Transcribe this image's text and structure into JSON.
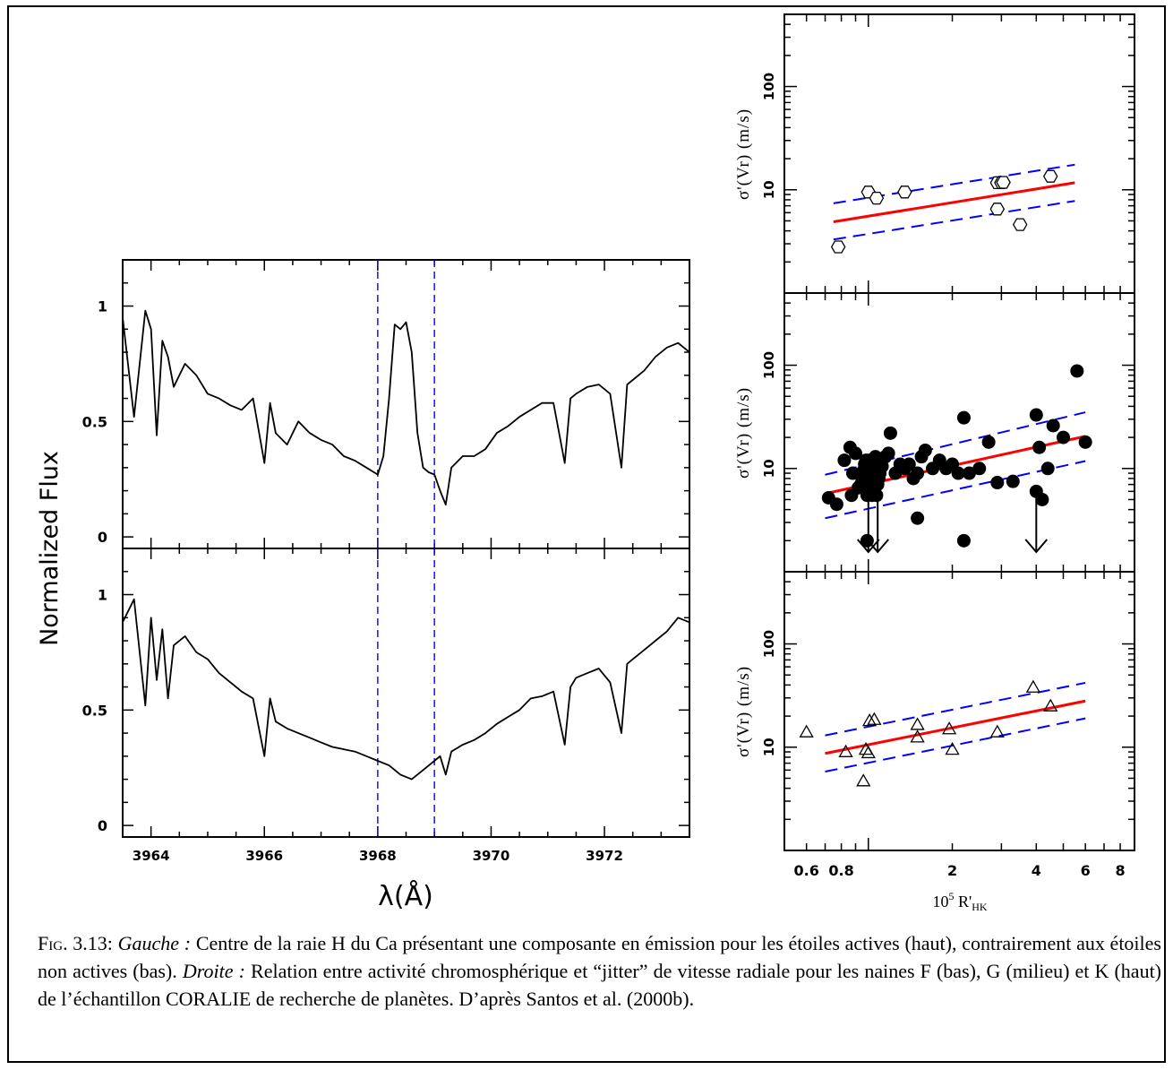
{
  "left_ylabel": "Normalized Flux",
  "left_xlabel": "λ(Å)",
  "right_ylabel": "σ'(Vr) (m/s)",
  "right_xlabel_prefix": "10",
  "right_xlabel_exp": "5",
  "right_xlabel_main": " R'",
  "right_xlabel_sub": "HK",
  "caption": {
    "fig_label": "Fig.",
    "fig_number": " 3.13: ",
    "left_head": "Gauche :",
    "left_text": " Centre de la raie H du Ca présentant une composante en émission pour les étoiles actives (haut), contrairement aux étoiles non actives (bas). ",
    "right_head": "Droite :",
    "right_text": " Relation entre activité chromosphérique et “jitter” de vitesse radiale pour les naines F (bas), G (milieu) et K (haut) de l’échantillon CORALIE de recherche de planètes. D’après Santos et al. (2000b)."
  },
  "colors": {
    "fit": "#ff0000",
    "bounds": "#0000ff",
    "lines": "#000000",
    "markers": "#000000"
  },
  "chart_data": [
    {
      "type": "line",
      "panel": "spectrum-active-top",
      "xlim": [
        3963.5,
        3973.5
      ],
      "ylim": [
        -0.05,
        1.2
      ],
      "xticks": [
        3964,
        3966,
        3968,
        3970,
        3972
      ],
      "yticks": [
        0,
        0.5,
        1
      ],
      "ytick_labels": [
        "0",
        "0.5",
        "1"
      ],
      "vlines": [
        3968.0,
        3969.0
      ],
      "x": [
        3963.5,
        3963.7,
        3963.9,
        3964.0,
        3964.1,
        3964.2,
        3964.3,
        3964.4,
        3964.6,
        3964.8,
        3965.0,
        3965.2,
        3965.4,
        3965.6,
        3965.8,
        3966.0,
        3966.1,
        3966.2,
        3966.4,
        3966.6,
        3966.8,
        3967.0,
        3967.2,
        3967.4,
        3967.6,
        3967.8,
        3968.0,
        3968.1,
        3968.2,
        3968.3,
        3968.4,
        3968.5,
        3968.6,
        3968.7,
        3968.8,
        3968.9,
        3969.0,
        3969.1,
        3969.2,
        3969.3,
        3969.5,
        3969.7,
        3969.9,
        3970.1,
        3970.3,
        3970.5,
        3970.7,
        3970.9,
        3971.1,
        3971.3,
        3971.4,
        3971.5,
        3971.7,
        3971.9,
        3972.1,
        3972.3,
        3972.4,
        3972.5,
        3972.7,
        3972.9,
        3973.1,
        3973.3,
        3973.5
      ],
      "y": [
        0.95,
        0.52,
        0.98,
        0.9,
        0.44,
        0.85,
        0.78,
        0.65,
        0.75,
        0.7,
        0.62,
        0.6,
        0.57,
        0.55,
        0.6,
        0.32,
        0.58,
        0.45,
        0.4,
        0.5,
        0.45,
        0.42,
        0.4,
        0.35,
        0.33,
        0.3,
        0.27,
        0.35,
        0.6,
        0.92,
        0.9,
        0.93,
        0.8,
        0.45,
        0.3,
        0.28,
        0.27,
        0.2,
        0.14,
        0.3,
        0.35,
        0.35,
        0.38,
        0.45,
        0.48,
        0.52,
        0.55,
        0.58,
        0.58,
        0.32,
        0.6,
        0.62,
        0.65,
        0.66,
        0.62,
        0.3,
        0.66,
        0.68,
        0.72,
        0.78,
        0.82,
        0.84,
        0.8
      ]
    },
    {
      "type": "line",
      "panel": "spectrum-inactive-bottom",
      "xlim": [
        3963.5,
        3973.5
      ],
      "ylim": [
        -0.05,
        1.2
      ],
      "xticks": [
        3964,
        3966,
        3968,
        3970,
        3972
      ],
      "xtick_labels": [
        "3964",
        "3966",
        "3968",
        "3970",
        "3972"
      ],
      "yticks": [
        0,
        0.5,
        1
      ],
      "ytick_labels": [
        "0",
        "0.5",
        "1"
      ],
      "vlines": [
        3968.0,
        3969.0
      ],
      "x": [
        3963.5,
        3963.7,
        3963.9,
        3964.0,
        3964.1,
        3964.2,
        3964.3,
        3964.4,
        3964.6,
        3964.8,
        3965.0,
        3965.2,
        3965.4,
        3965.6,
        3965.8,
        3966.0,
        3966.1,
        3966.2,
        3966.4,
        3966.6,
        3966.8,
        3967.0,
        3967.2,
        3967.4,
        3967.6,
        3967.8,
        3968.0,
        3968.2,
        3968.4,
        3968.6,
        3968.8,
        3969.0,
        3969.1,
        3969.2,
        3969.3,
        3969.5,
        3969.7,
        3969.9,
        3970.1,
        3970.3,
        3970.5,
        3970.7,
        3970.9,
        3971.1,
        3971.3,
        3971.4,
        3971.5,
        3971.7,
        3971.9,
        3972.1,
        3972.3,
        3972.4,
        3972.5,
        3972.7,
        3972.9,
        3973.1,
        3973.3,
        3973.5
      ],
      "y": [
        0.88,
        0.98,
        0.52,
        0.9,
        0.63,
        0.85,
        0.55,
        0.78,
        0.82,
        0.75,
        0.72,
        0.66,
        0.62,
        0.58,
        0.55,
        0.3,
        0.55,
        0.45,
        0.42,
        0.4,
        0.38,
        0.36,
        0.34,
        0.33,
        0.32,
        0.3,
        0.28,
        0.26,
        0.22,
        0.2,
        0.24,
        0.28,
        0.3,
        0.22,
        0.32,
        0.35,
        0.37,
        0.4,
        0.44,
        0.47,
        0.5,
        0.55,
        0.56,
        0.58,
        0.35,
        0.6,
        0.64,
        0.66,
        0.68,
        0.62,
        0.4,
        0.7,
        0.72,
        0.76,
        0.8,
        0.84,
        0.9,
        0.88
      ]
    },
    {
      "type": "scatter",
      "panel": "K-dwarfs-top",
      "xscale": "log",
      "yscale": "log",
      "xlim": [
        0.5,
        9
      ],
      "ylim": [
        1,
        500
      ],
      "yticks": [
        10,
        100
      ],
      "ytick_labels": [
        "10",
        "100"
      ],
      "marker": "hexagon-open",
      "x": [
        0.78,
        1.0,
        1.07,
        1.35,
        2.9,
        3.0,
        3.05,
        2.9,
        3.5,
        4.5
      ],
      "y": [
        2.8,
        9.5,
        8.3,
        9.5,
        11.7,
        11.7,
        11.8,
        6.5,
        4.6,
        13.5
      ],
      "fit": {
        "x": [
          0.75,
          5.5
        ],
        "y": [
          4.9,
          11.7
        ]
      },
      "upper": {
        "x": [
          0.75,
          5.5
        ],
        "y": [
          7.4,
          17.5
        ]
      },
      "lower": {
        "x": [
          0.75,
          5.5
        ],
        "y": [
          3.3,
          7.8
        ]
      }
    },
    {
      "type": "scatter",
      "panel": "G-dwarfs-middle",
      "xscale": "log",
      "yscale": "log",
      "xlim": [
        0.5,
        9
      ],
      "ylim": [
        1,
        500
      ],
      "yticks": [
        10,
        100
      ],
      "ytick_labels": [
        "10",
        "100"
      ],
      "marker": "circle-filled",
      "x": [
        0.72,
        0.77,
        0.82,
        0.86,
        0.87,
        0.88,
        0.9,
        0.92,
        0.94,
        0.95,
        0.96,
        0.97,
        0.98,
        0.99,
        1.0,
        1.0,
        1.01,
        1.02,
        1.03,
        1.04,
        1.05,
        1.06,
        1.07,
        1.08,
        1.09,
        1.1,
        1.12,
        1.15,
        1.18,
        1.2,
        1.25,
        1.3,
        1.35,
        1.4,
        1.45,
        1.5,
        1.55,
        1.6,
        1.7,
        1.8,
        1.9,
        2.0,
        2.1,
        2.2,
        2.3,
        2.5,
        2.7,
        2.9,
        3.3,
        4.0,
        4.0,
        4.1,
        4.2,
        4.4,
        4.6,
        5.0,
        5.6,
        6.0,
        0.99,
        1.03,
        1.5,
        2.2
      ],
      "y": [
        5.2,
        4.5,
        12,
        16,
        5.5,
        9,
        14,
        6.5,
        7,
        8,
        9.5,
        11,
        12,
        5.5,
        7,
        10,
        12,
        8.5,
        9,
        10,
        11,
        13,
        5.5,
        7,
        8,
        9,
        10.5,
        13,
        14,
        22,
        9,
        11,
        10,
        11,
        8,
        9,
        13,
        15,
        10,
        12,
        10,
        11,
        9,
        31,
        9,
        10,
        18,
        7.3,
        7.5,
        6,
        33,
        16,
        5,
        10,
        26,
        20,
        88,
        18,
        2,
        5.5,
        3.3,
        2
      ],
      "upper_limits": {
        "x": [
          1.0,
          1.08,
          4.0
        ],
        "y": [
          7,
          10,
          6
        ]
      },
      "fit": {
        "x": [
          0.7,
          6.0
        ],
        "y": [
          5.7,
          20.5
        ]
      },
      "upper": {
        "x": [
          0.7,
          6.0
        ],
        "y": [
          8.7,
          35
        ]
      },
      "lower": {
        "x": [
          0.7,
          6.0
        ],
        "y": [
          3.3,
          11.8
        ]
      }
    },
    {
      "type": "scatter",
      "panel": "F-dwarfs-bottom",
      "xscale": "log",
      "yscale": "log",
      "xlim": [
        0.5,
        9
      ],
      "ylim": [
        1,
        500
      ],
      "xticks": [
        0.6,
        0.8,
        2,
        4,
        6,
        8
      ],
      "xtick_labels": [
        "0.6",
        "0.8",
        "2",
        "4",
        "6",
        "8"
      ],
      "yticks": [
        10,
        100
      ],
      "ytick_labels": [
        "10",
        "100"
      ],
      "marker": "triangle-open",
      "x": [
        0.6,
        0.83,
        0.96,
        0.98,
        1.0,
        1.01,
        1.05,
        1.5,
        1.5,
        1.95,
        2.0,
        2.9,
        3.9,
        4.5
      ],
      "y": [
        14,
        9,
        4.7,
        9.5,
        8.8,
        18,
        18.5,
        16.5,
        12.5,
        15,
        9.5,
        14,
        38,
        25
      ],
      "fit": {
        "x": [
          0.7,
          6.0
        ],
        "y": [
          8.7,
          28
        ]
      },
      "upper": {
        "x": [
          0.7,
          6.0
        ],
        "y": [
          13,
          42
        ]
      },
      "lower": {
        "x": [
          0.7,
          6.0
        ],
        "y": [
          5.8,
          19
        ]
      }
    }
  ]
}
